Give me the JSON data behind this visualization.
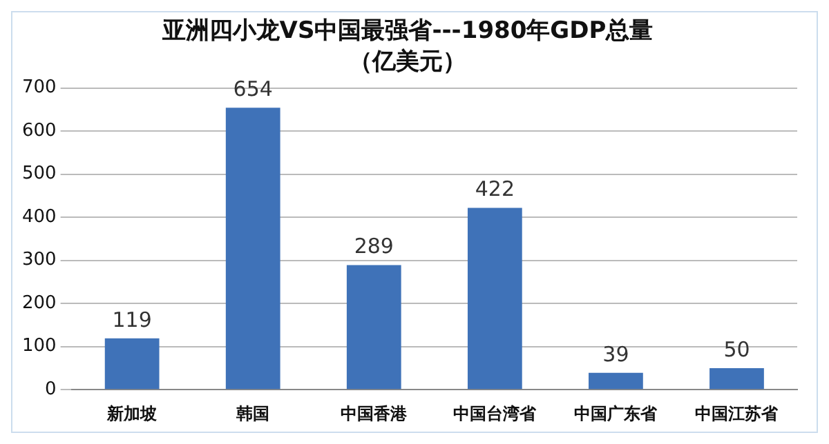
{
  "chart_data": {
    "type": "bar",
    "title": "亚洲四小龙VS中国最强省---1980年GDP总量",
    "subtitle": "（亿美元）",
    "categories": [
      "新加坡",
      "韩国",
      "中国香港",
      "中国台湾省",
      "中国广东省",
      "中国江苏省"
    ],
    "values": [
      119,
      654,
      289,
      422,
      39,
      50
    ],
    "color": "#3f72b8",
    "ylim": [
      0,
      700
    ],
    "yticks": [
      0,
      100,
      200,
      300,
      400,
      500,
      600,
      700
    ],
    "grid": "y",
    "data_labels": true,
    "legend": false
  }
}
